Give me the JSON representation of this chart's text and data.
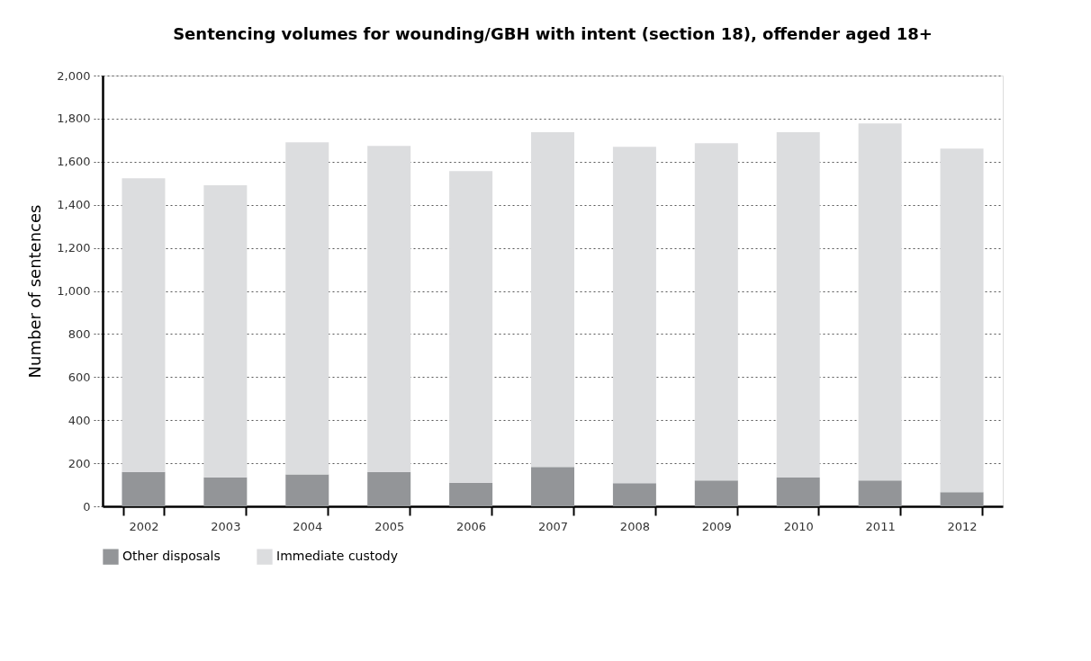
{
  "chart_data": {
    "type": "bar",
    "title": "Sentencing volumes for wounding/GBH with intent (section 18), offender aged 18+",
    "ylabel": "Number of sentences",
    "categories": [
      "2002",
      "2003",
      "2004",
      "2005",
      "2006",
      "2007",
      "2008",
      "2009",
      "2010",
      "2011",
      "2012"
    ],
    "stacked": true,
    "series": [
      {
        "name": "Other disposals",
        "color": "#939598",
        "values": [
          160,
          135,
          148,
          160,
          110,
          183,
          108,
          120,
          134,
          120,
          66
        ]
      },
      {
        "name": "Immediate custody",
        "color": "#dcdddf",
        "values": [
          1363,
          1356,
          1542,
          1513,
          1446,
          1554,
          1561,
          1566,
          1603,
          1658,
          1595
        ]
      }
    ],
    "ylim": [
      0,
      2000
    ],
    "yticks": [
      0,
      {
        "value": 200,
        "label": "200"
      },
      {
        "value": 400,
        "label": "400"
      },
      {
        "value": 600,
        "label": "600"
      },
      {
        "value": 800,
        "label": "800"
      },
      {
        "value": 1000,
        "label": "1,000"
      },
      {
        "value": 1200,
        "label": "1,200"
      },
      {
        "value": 1400,
        "label": "1,400"
      },
      {
        "value": 1600,
        "label": "1,600"
      },
      {
        "value": 1800,
        "label": "1,800"
      },
      {
        "value": 2000,
        "label": "2,000"
      }
    ],
    "grid": "y",
    "legend": "bottom"
  }
}
